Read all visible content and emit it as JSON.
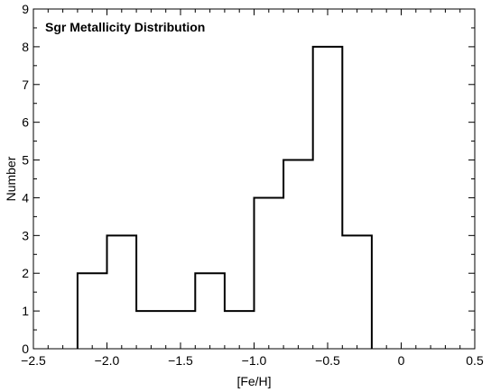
{
  "chart_data": {
    "type": "bar",
    "subtype": "histogram-step",
    "title": "Sgr Metallicity Distribution",
    "xlabel": "[Fe/H]",
    "ylabel": "Number",
    "xlim": [
      -2.5,
      0.5
    ],
    "ylim": [
      0,
      9
    ],
    "x_ticks": [
      -2.5,
      -2.0,
      -1.5,
      -1.0,
      -0.5,
      0,
      0.5
    ],
    "x_tick_labels": [
      "−2.5",
      "−2.0",
      "−1.5",
      "−1.0",
      "−0.5",
      "0",
      "0.5"
    ],
    "y_ticks": [
      0,
      1,
      2,
      3,
      4,
      5,
      6,
      7,
      8,
      9
    ],
    "y_tick_labels": [
      "0",
      "1",
      "2",
      "3",
      "4",
      "5",
      "6",
      "7",
      "8",
      "9"
    ],
    "bin_edges": [
      -2.2,
      -2.0,
      -1.8,
      -1.6,
      -1.4,
      -1.2,
      -1.0,
      -0.8,
      -0.6,
      -0.4,
      -0.2
    ],
    "counts": [
      2,
      3,
      1,
      1,
      2,
      1,
      4,
      5,
      8,
      3
    ],
    "grid": false,
    "line_color": "#000000"
  }
}
